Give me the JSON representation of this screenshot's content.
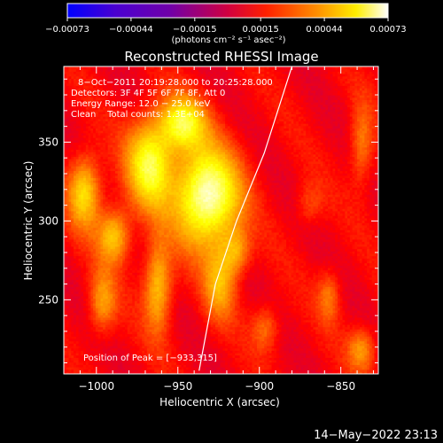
{
  "chart_data": {
    "type": "heatmap",
    "title": "Reconstructed RHESSI Image",
    "xlabel": "Heliocentric X (arcsec)",
    "ylabel": "Heliocentric Y (arcsec)",
    "xlim": [
      -1020,
      -827
    ],
    "ylim": [
      203,
      398
    ],
    "x_ticks": [
      -1000,
      -950,
      -900,
      -850
    ],
    "x_tick_labels": [
      "−1000",
      "−950",
      "−900",
      "−850"
    ],
    "y_ticks": [
      250,
      300,
      350
    ],
    "y_tick_labels": [
      "250",
      "300",
      "350"
    ],
    "colorbar": {
      "range": [
        -0.00073,
        0.00073
      ],
      "ticks": [
        -0.00073,
        -0.00044,
        -0.00015,
        0.00015,
        0.00044,
        0.00073
      ],
      "tick_labels": [
        "−0.00073",
        "−0.00044",
        "−0.00015",
        "0.00015",
        "0.00044",
        "0.00073"
      ],
      "label": "(photons cm⁻² s⁻¹ asec⁻²)",
      "colors": [
        "#0000ff",
        "#6a00b5",
        "#b00070",
        "#ff0000",
        "#ff8c00",
        "#ffff00",
        "#ffffff"
      ]
    },
    "annotations": [
      "8−Oct−2011 20:19:28.000 to 20:25:28.000",
      "Detectors: 3F 4F 5F 6F 7F 8F, Att 0",
      "Energy Range: 12.0 − 25.0 keV",
      "Clean    Total counts: 1.3E+04"
    ],
    "peak_label": "Position of Peak = [−933,315]",
    "peak": [
      -933,
      315
    ],
    "limb_curve": [
      [
        -937,
        205
      ],
      [
        -927,
        260
      ],
      [
        -914,
        300
      ],
      [
        -897,
        343
      ],
      [
        -880,
        398
      ]
    ],
    "sources": [
      {
        "x": -933,
        "y": 315,
        "sx": 14,
        "sy": 22,
        "amp": 0.00073
      },
      {
        "x": -968,
        "y": 336,
        "sx": 10,
        "sy": 20,
        "amp": 0.00055
      },
      {
        "x": -948,
        "y": 362,
        "sx": 10,
        "sy": 12,
        "amp": 0.0005
      },
      {
        "x": -1008,
        "y": 318,
        "sx": 7,
        "sy": 16,
        "amp": 0.00045
      },
      {
        "x": -990,
        "y": 290,
        "sx": 7,
        "sy": 12,
        "amp": 0.0004
      },
      {
        "x": -963,
        "y": 258,
        "sx": 6,
        "sy": 20,
        "amp": 0.0004
      },
      {
        "x": -925,
        "y": 260,
        "sx": 7,
        "sy": 16,
        "amp": 0.00032
      },
      {
        "x": -915,
        "y": 280,
        "sx": 6,
        "sy": 10,
        "amp": 0.00028
      },
      {
        "x": -997,
        "y": 248,
        "sx": 6,
        "sy": 14,
        "amp": 0.0003
      },
      {
        "x": -838,
        "y": 348,
        "sx": 5,
        "sy": 18,
        "amp": 0.00025
      },
      {
        "x": -858,
        "y": 252,
        "sx": 5,
        "sy": 12,
        "amp": 0.00022
      },
      {
        "x": -838,
        "y": 218,
        "sx": 6,
        "sy": 10,
        "amp": 0.00028
      },
      {
        "x": -870,
        "y": 310,
        "sx": 6,
        "sy": 10,
        "amp": 0.00015
      },
      {
        "x": -897,
        "y": 232,
        "sx": 6,
        "sy": 10,
        "amp": 0.00022
      }
    ]
  },
  "footer": {
    "timestamp": "14−May−2022 23:13"
  }
}
